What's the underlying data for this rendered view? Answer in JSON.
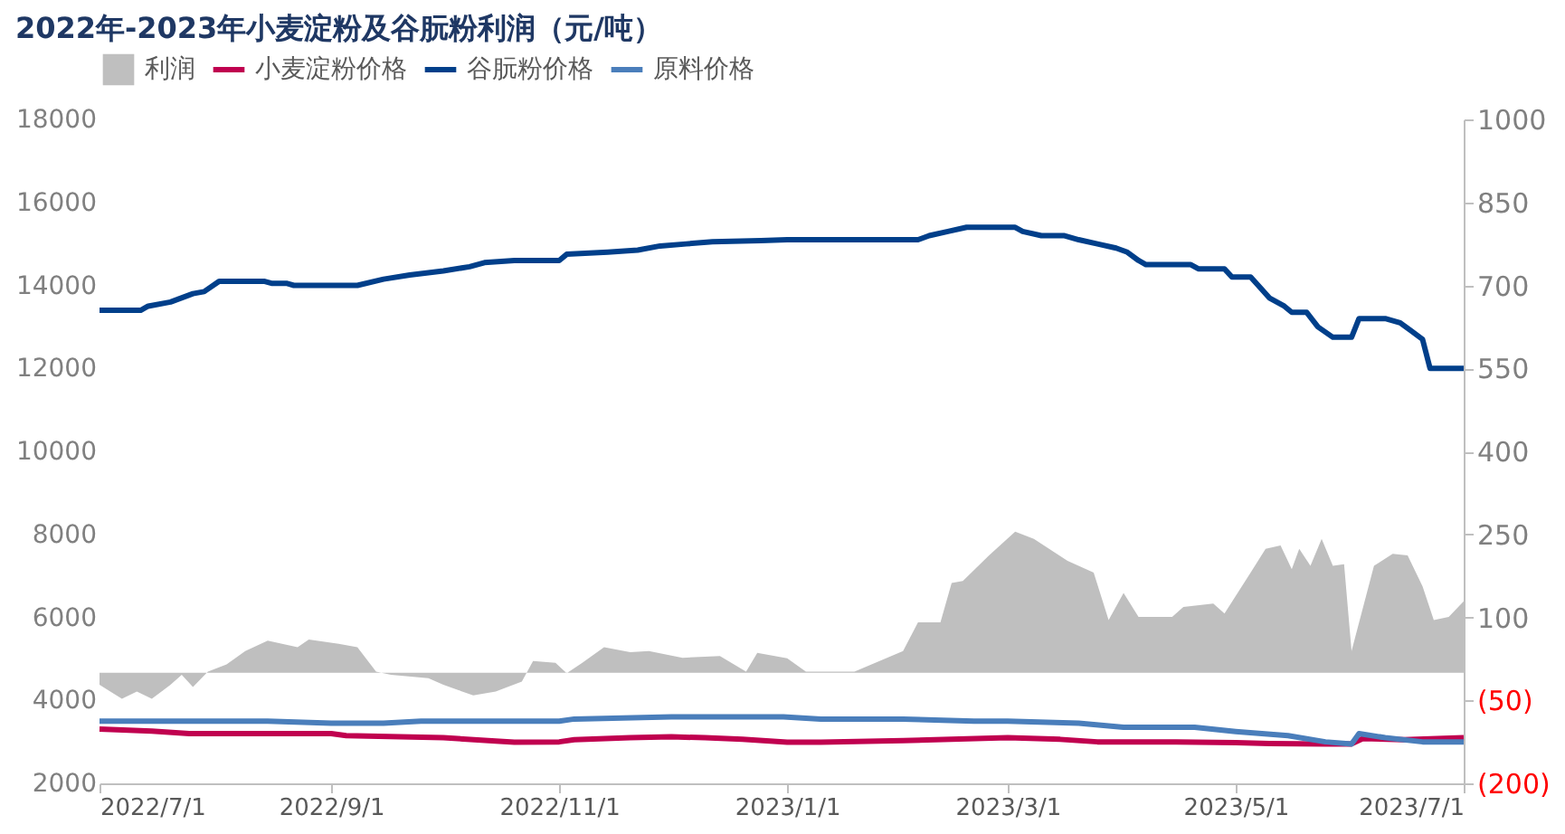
{
  "chart_data": {
    "type": "line",
    "title": "2022年-2023年小麦淀粉及谷朊粉利润（元/吨）",
    "legend": "top",
    "grid": false,
    "marker": "none",
    "xlim": [
      "2022-07-01",
      "2023-07-01"
    ],
    "xticks": [
      {
        "value": "2022-07-01",
        "label": "2022/7/1"
      },
      {
        "value": "2022-09-01",
        "label": "2022/9/1"
      },
      {
        "value": "2022-11-01",
        "label": "2022/11/1"
      },
      {
        "value": "2023-01-01",
        "label": "2023/1/1"
      },
      {
        "value": "2023-03-01",
        "label": "2023/3/1"
      },
      {
        "value": "2023-05-01",
        "label": "2023/5/1"
      },
      {
        "value": "2023-07-01",
        "label": "2023/7/1"
      }
    ],
    "ylim": [
      2000,
      18000
    ],
    "yticks": [
      2000,
      4000,
      6000,
      8000,
      10000,
      12000,
      14000,
      16000,
      18000
    ],
    "y2lim": [
      -200,
      1000
    ],
    "y2ticks": [
      {
        "value": -200,
        "label": "(200)"
      },
      {
        "value": -50,
        "label": "(50)"
      },
      100,
      250,
      400,
      550,
      700,
      850,
      1000
    ],
    "series": [
      {
        "name": "利润",
        "type": "area",
        "axis": "y2",
        "color": "#bfbfbf",
        "x": [
          "2022-07-01",
          "2022-07-07",
          "2022-07-11",
          "2022-07-15",
          "2022-07-20",
          "2022-07-23",
          "2022-07-26",
          "2022-07-30",
          "2022-08-04",
          "2022-08-09",
          "2022-08-15",
          "2022-08-23",
          "2022-08-26",
          "2022-09-03",
          "2022-09-08",
          "2022-09-13",
          "2022-09-17",
          "2022-09-27",
          "2022-10-01",
          "2022-10-09",
          "2022-10-15",
          "2022-10-22",
          "2022-10-25",
          "2022-10-31",
          "2022-11-03",
          "2022-11-07",
          "2022-11-13",
          "2022-11-20",
          "2022-11-25",
          "2022-12-04",
          "2022-12-14",
          "2022-12-21",
          "2022-12-24",
          "2023-01-01",
          "2023-01-06",
          "2023-01-19",
          "2023-02-01",
          "2023-02-05",
          "2023-02-11",
          "2023-02-14",
          "2023-02-17",
          "2023-02-24",
          "2023-03-03",
          "2023-03-08",
          "2023-03-17",
          "2023-03-24",
          "2023-03-28",
          "2023-04-01",
          "2023-04-05",
          "2023-04-14",
          "2023-04-17",
          "2023-04-25",
          "2023-04-28",
          "2023-05-05",
          "2023-05-09",
          "2023-05-13",
          "2023-05-16",
          "2023-05-18",
          "2023-05-21",
          "2023-05-24",
          "2023-05-27",
          "2023-05-30",
          "2023-06-01",
          "2023-06-07",
          "2023-06-12",
          "2023-06-16",
          "2023-06-20",
          "2023-06-23",
          "2023-06-27",
          "2023-07-01"
        ],
        "values": [
          -22,
          -47,
          -34,
          -47,
          -22,
          -4,
          -26,
          2,
          15,
          39,
          58,
          46,
          60,
          52,
          46,
          2,
          -4,
          -10,
          -22,
          -41,
          -34,
          -16,
          21,
          18,
          -1,
          17,
          46,
          37,
          39,
          27,
          30,
          2,
          36,
          26,
          2,
          2,
          39,
          91,
          91,
          162,
          166,
          212,
          255,
          242,
          202,
          181,
          95,
          144,
          101,
          101,
          119,
          125,
          107,
          181,
          224,
          230,
          187,
          224,
          193,
          242,
          193,
          196,
          39,
          193,
          215,
          212,
          156,
          95,
          101,
          129
        ]
      },
      {
        "name": "小麦淀粉价格",
        "color": "#c0004f",
        "x": [
          "2022-07-01",
          "2022-07-15",
          "2022-07-25",
          "2022-09-01",
          "2022-09-05",
          "2022-10-01",
          "2022-10-15",
          "2022-10-20",
          "2022-11-01",
          "2022-11-05",
          "2022-11-20",
          "2022-12-01",
          "2022-12-10",
          "2022-12-20",
          "2023-01-01",
          "2023-01-10",
          "2023-02-01",
          "2023-03-01",
          "2023-03-15",
          "2023-03-25",
          "2023-04-15",
          "2023-05-01",
          "2023-05-10",
          "2023-05-25",
          "2023-06-01",
          "2023-06-04",
          "2023-06-15",
          "2023-07-01"
        ],
        "values": [
          3310,
          3260,
          3200,
          3200,
          3150,
          3100,
          3020,
          2990,
          3000,
          3050,
          3100,
          3120,
          3100,
          3060,
          2990,
          2990,
          3030,
          3100,
          3060,
          3000,
          3000,
          2980,
          2960,
          2950,
          2950,
          3080,
          3050,
          3100
        ]
      },
      {
        "name": "谷朊粉价格",
        "color": "#003f8a",
        "x": [
          "2022-07-01",
          "2022-07-12",
          "2022-07-14",
          "2022-07-20",
          "2022-07-26",
          "2022-07-29",
          "2022-08-02",
          "2022-08-14",
          "2022-08-16",
          "2022-08-20",
          "2022-08-22",
          "2022-09-08",
          "2022-09-15",
          "2022-09-22",
          "2022-10-01",
          "2022-10-08",
          "2022-10-12",
          "2022-10-20",
          "2022-11-01",
          "2022-11-03",
          "2022-11-14",
          "2022-11-22",
          "2022-11-28",
          "2022-12-05",
          "2022-12-12",
          "2022-12-25",
          "2023-01-01",
          "2023-02-05",
          "2023-02-08",
          "2023-02-13",
          "2023-02-18",
          "2023-03-03",
          "2023-03-05",
          "2023-03-10",
          "2023-03-16",
          "2023-03-20",
          "2023-03-25",
          "2023-03-30",
          "2023-04-02",
          "2023-04-05",
          "2023-04-07",
          "2023-04-19",
          "2023-04-21",
          "2023-04-28",
          "2023-04-30",
          "2023-05-05",
          "2023-05-08",
          "2023-05-10",
          "2023-05-14",
          "2023-05-16",
          "2023-05-20",
          "2023-05-23",
          "2023-05-27",
          "2023-06-01",
          "2023-06-03",
          "2023-06-10",
          "2023-06-14",
          "2023-06-17",
          "2023-06-20",
          "2023-06-22",
          "2023-07-01"
        ],
        "values": [
          13400,
          13400,
          13500,
          13600,
          13800,
          13850,
          14100,
          14100,
          14050,
          14050,
          14000,
          14000,
          14150,
          14250,
          14350,
          14450,
          14550,
          14600,
          14600,
          14750,
          14800,
          14850,
          14950,
          15000,
          15050,
          15080,
          15100,
          15100,
          15200,
          15300,
          15400,
          15400,
          15300,
          15200,
          15200,
          15100,
          15000,
          14900,
          14800,
          14600,
          14500,
          14500,
          14400,
          14400,
          14200,
          14200,
          13900,
          13700,
          13500,
          13350,
          13350,
          13000,
          12750,
          12750,
          13200,
          13200,
          13100,
          12900,
          12700,
          12000,
          12000
        ]
      },
      {
        "name": "原料价格",
        "color": "#4a7ebb",
        "x": [
          "2022-07-01",
          "2022-08-01",
          "2022-08-15",
          "2022-09-01",
          "2022-09-15",
          "2022-09-25",
          "2022-11-01",
          "2022-11-05",
          "2022-12-01",
          "2022-12-31",
          "2023-01-10",
          "2023-02-01",
          "2023-02-20",
          "2023-03-01",
          "2023-03-20",
          "2023-04-01",
          "2023-04-20",
          "2023-05-01",
          "2023-05-15",
          "2023-05-25",
          "2023-06-01",
          "2023-06-03",
          "2023-06-10",
          "2023-06-20",
          "2023-07-01"
        ],
        "values": [
          3500,
          3500,
          3500,
          3450,
          3450,
          3500,
          3500,
          3550,
          3600,
          3600,
          3550,
          3550,
          3500,
          3500,
          3450,
          3350,
          3350,
          3250,
          3150,
          3000,
          2950,
          3200,
          3100,
          3000,
          3000
        ]
      }
    ]
  }
}
